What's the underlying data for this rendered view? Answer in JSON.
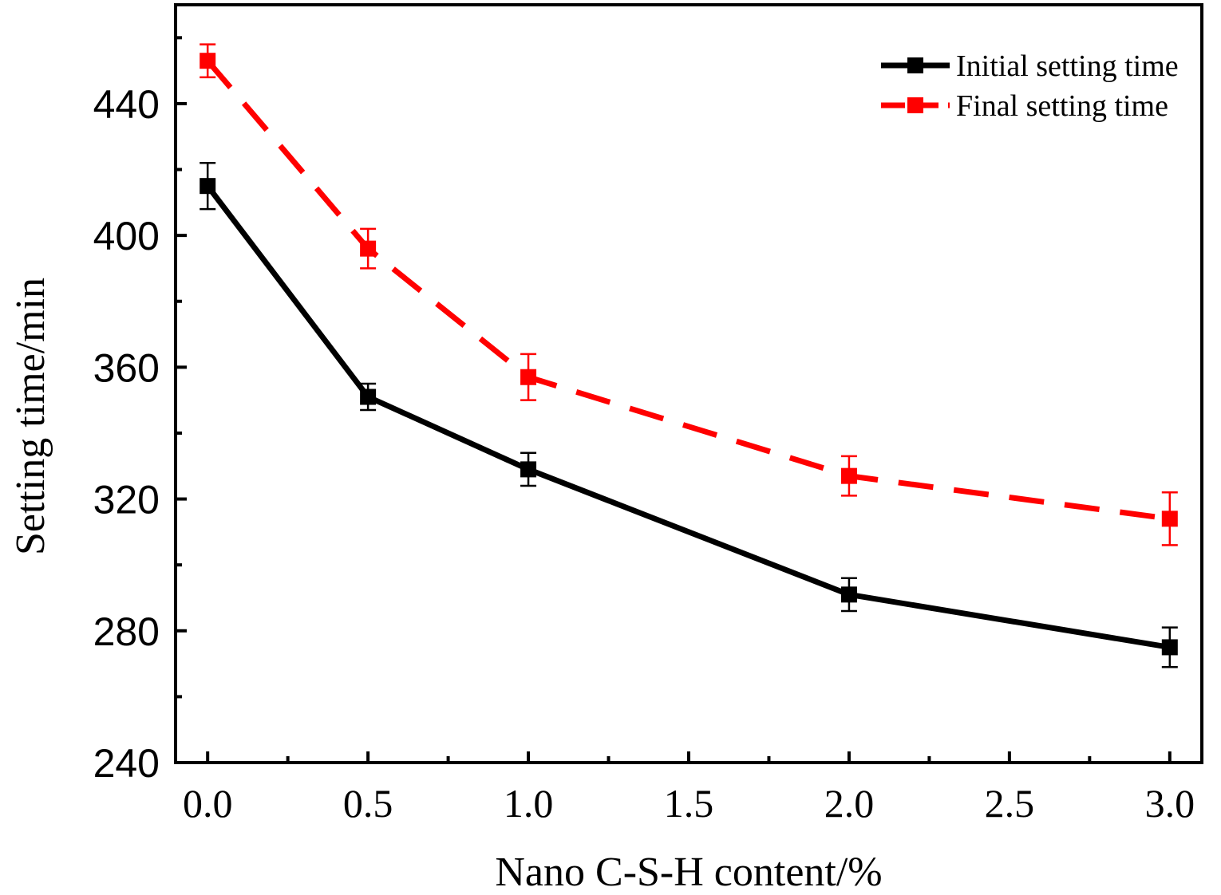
{
  "chart_data": {
    "type": "line",
    "title": "",
    "xlabel": "Nano C-S-H content/%",
    "ylabel": "Setting time/min",
    "x": [
      0.0,
      0.5,
      1.0,
      2.0,
      3.0
    ],
    "xlim": [
      -0.1,
      3.1
    ],
    "ylim": [
      240,
      470
    ],
    "x_ticks": [
      0.0,
      0.5,
      1.0,
      1.5,
      2.0,
      2.5,
      3.0
    ],
    "x_tick_labels": [
      "0.0",
      "0.5",
      "1.0",
      "1.5",
      "2.0",
      "2.5",
      "3.0"
    ],
    "y_ticks": [
      240,
      280,
      320,
      360,
      400,
      440
    ],
    "y_tick_labels": [
      "240",
      "280",
      "320",
      "360",
      "400",
      "440"
    ],
    "y_minor_ticks": [
      260,
      300,
      340,
      380,
      420,
      460
    ],
    "x_minor_ticks": [
      0.25,
      0.75,
      1.25,
      1.75,
      2.25,
      2.75
    ],
    "grid": false,
    "legend_position": "top-right",
    "series": [
      {
        "name": "Initial setting time",
        "color": "#000000",
        "line_style": "solid",
        "marker": "square",
        "values": [
          415,
          351,
          329,
          291,
          275
        ],
        "errors": [
          7,
          4,
          5,
          5,
          6
        ]
      },
      {
        "name": "Final setting time",
        "color": "#ff0000",
        "line_style": "dashed",
        "marker": "square",
        "values": [
          453,
          396,
          357,
          327,
          314
        ],
        "errors": [
          5,
          6,
          7,
          6,
          8
        ]
      }
    ]
  }
}
